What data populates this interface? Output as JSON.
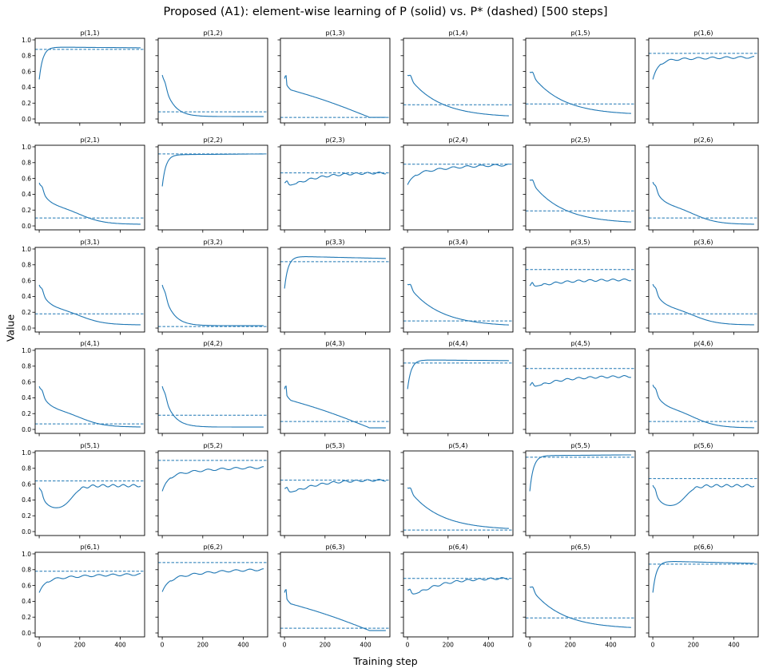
{
  "figure": {
    "title": "Proposed (A1): element-wise learning of P (solid) vs. P* (dashed) [500 steps]",
    "xlabel": "Training step",
    "ylabel": "Value"
  },
  "chart_data": {
    "type": "line",
    "layout_grid": [
      6,
      6
    ],
    "sharex": true,
    "sharey": true,
    "xlim": [
      -20,
      520
    ],
    "ylim": [
      -0.05,
      1.02
    ],
    "xticks": [
      0,
      200,
      400
    ],
    "yticks": [
      0.0,
      0.2,
      0.4,
      0.6,
      0.8,
      1.0
    ],
    "line_color": "#1f77b4",
    "panels": [
      {
        "title": "p(1,1)",
        "target": 0.88,
        "final": 0.9,
        "shape": "fast_up",
        "start": 0.5,
        "peak": 0.91
      },
      {
        "title": "p(1,2)",
        "target": 0.09,
        "final": 0.03,
        "shape": "fast_down",
        "start": 0.55
      },
      {
        "title": "p(1,3)",
        "target": 0.02,
        "final": 0.02,
        "shape": "linear_down",
        "start": 0.55
      },
      {
        "title": "p(1,4)",
        "target": 0.18,
        "final": 0.02,
        "shape": "slow_down",
        "start": 0.55
      },
      {
        "title": "p(1,5)",
        "target": 0.19,
        "final": 0.05,
        "shape": "slow_down",
        "start": 0.59
      },
      {
        "title": "p(1,6)",
        "target": 0.83,
        "final": 0.78,
        "shape": "rise_noisy",
        "start": 0.5,
        "mid": 0.73
      },
      {
        "title": "p(2,1)",
        "target": 0.1,
        "final": 0.02,
        "shape": "mid_down",
        "start": 0.55
      },
      {
        "title": "p(2,2)",
        "target": 0.91,
        "final": 0.91,
        "shape": "fast_up",
        "start": 0.5,
        "peak": 0.9
      },
      {
        "title": "p(2,3)",
        "target": 0.67,
        "final": 0.67,
        "shape": "dip_rise",
        "start": 0.54,
        "dip": 0.45
      },
      {
        "title": "p(2,4)",
        "target": 0.78,
        "final": 0.77,
        "shape": "rise_noisy",
        "start": 0.52,
        "mid": 0.64
      },
      {
        "title": "p(2,5)",
        "target": 0.19,
        "final": 0.03,
        "shape": "slow_down",
        "start": 0.58
      },
      {
        "title": "p(2,6)",
        "target": 0.1,
        "final": 0.02,
        "shape": "mid_down",
        "start": 0.56
      },
      {
        "title": "p(3,1)",
        "target": 0.18,
        "final": 0.04,
        "shape": "mid_down",
        "start": 0.55
      },
      {
        "title": "p(3,2)",
        "target": 0.02,
        "final": 0.03,
        "shape": "fast_down",
        "start": 0.54
      },
      {
        "title": "p(3,3)",
        "target": 0.84,
        "final": 0.88,
        "shape": "fast_up",
        "start": 0.5,
        "peak": 0.91
      },
      {
        "title": "p(3,4)",
        "target": 0.09,
        "final": 0.02,
        "shape": "slow_down",
        "start": 0.55
      },
      {
        "title": "p(3,5)",
        "target": 0.74,
        "final": 0.61,
        "shape": "dip_rise",
        "start": 0.53,
        "dip": 0.5
      },
      {
        "title": "p(3,6)",
        "target": 0.18,
        "final": 0.04,
        "shape": "mid_down",
        "start": 0.56
      },
      {
        "title": "p(4,1)",
        "target": 0.07,
        "final": 0.03,
        "shape": "mid_down",
        "start": 0.55
      },
      {
        "title": "p(4,2)",
        "target": 0.18,
        "final": 0.03,
        "shape": "fast_down",
        "start": 0.54
      },
      {
        "title": "p(4,3)",
        "target": 0.1,
        "final": 0.02,
        "shape": "linear_down",
        "start": 0.55
      },
      {
        "title": "p(4,4)",
        "target": 0.84,
        "final": 0.87,
        "shape": "fast_up",
        "start": 0.51,
        "peak": 0.88
      },
      {
        "title": "p(4,5)",
        "target": 0.77,
        "final": 0.67,
        "shape": "dip_rise",
        "start": 0.55,
        "dip": 0.5
      },
      {
        "title": "p(4,6)",
        "target": 0.1,
        "final": 0.02,
        "shape": "mid_down",
        "start": 0.57
      },
      {
        "title": "p(5,1)",
        "target": 0.64,
        "final": 0.58,
        "shape": "deep_dip_rise",
        "start": 0.55,
        "dip": 0.27
      },
      {
        "title": "p(5,2)",
        "target": 0.9,
        "final": 0.81,
        "shape": "rise_noisy",
        "start": 0.51,
        "mid": 0.69
      },
      {
        "title": "p(5,3)",
        "target": 0.65,
        "final": 0.65,
        "shape": "dip_rise",
        "start": 0.54,
        "dip": 0.43
      },
      {
        "title": "p(5,4)",
        "target": 0.02,
        "final": 0.02,
        "shape": "slow_down",
        "start": 0.55
      },
      {
        "title": "p(5,5)",
        "target": 0.94,
        "final": 0.97,
        "shape": "fast_up",
        "start": 0.51,
        "peak": 0.96
      },
      {
        "title": "p(5,6)",
        "target": 0.67,
        "final": 0.58,
        "shape": "deep_dip_rise",
        "start": 0.58,
        "dip": 0.3
      },
      {
        "title": "p(6,1)",
        "target": 0.78,
        "final": 0.74,
        "shape": "rise_noisy",
        "start": 0.51,
        "mid": 0.66
      },
      {
        "title": "p(6,2)",
        "target": 0.89,
        "final": 0.8,
        "shape": "rise_noisy",
        "start": 0.52,
        "mid": 0.66
      },
      {
        "title": "p(6,3)",
        "target": 0.06,
        "final": 0.03,
        "shape": "linear_down",
        "start": 0.55
      },
      {
        "title": "p(6,4)",
        "target": 0.69,
        "final": 0.69,
        "shape": "dip_rise",
        "start": 0.54,
        "dip": 0.4
      },
      {
        "title": "p(6,5)",
        "target": 0.19,
        "final": 0.05,
        "shape": "slow_down",
        "start": 0.58
      },
      {
        "title": "p(6,6)",
        "target": 0.87,
        "final": 0.88,
        "shape": "fast_up",
        "start": 0.51,
        "peak": 0.91
      }
    ]
  }
}
